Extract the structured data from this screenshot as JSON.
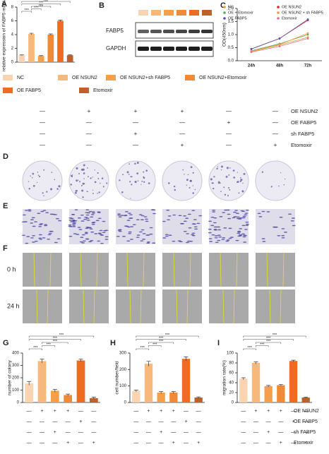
{
  "chart_data": [
    {
      "type": "bar",
      "panel": "A",
      "ylabel": "relative expression of FABP5 mRNA",
      "categories": [
        "NC",
        "OE NSUN2",
        "OE NSUN2+sh FABP5",
        "OE NSUN2+Etomoxir",
        "OE FABP5",
        "Etomoxir"
      ],
      "values": [
        1.0,
        4.1,
        0.9,
        4.0,
        6.0,
        1.0
      ],
      "errors": [
        0.05,
        0.1,
        0.05,
        0.1,
        0.1,
        0.05
      ],
      "colors": [
        "#f9d4b2",
        "#f7b87c",
        "#f4a04a",
        "#f08a36",
        "#ee6b22",
        "#bf5f2a"
      ],
      "ylim": [
        0,
        8
      ],
      "yticks": [
        0,
        2,
        4,
        6,
        8
      ],
      "annotations": [
        {
          "text": "***",
          "from": 0,
          "to": 1
        },
        {
          "text": "***",
          "from": 1,
          "to": 2
        },
        {
          "text": "ns",
          "from": 1,
          "to": 3
        },
        {
          "text": "***",
          "from": 0,
          "to": 4
        },
        {
          "text": "ns",
          "from": 0,
          "to": 5
        }
      ]
    },
    {
      "type": "line",
      "panel": "C",
      "ylabel": "OD(450nm)",
      "categories": [
        "24h",
        "48h",
        "72h"
      ],
      "ylim": [
        0,
        2
      ],
      "yticks": [
        {
          "value": 0,
          "label": "0.0"
        },
        {
          "value": 0.5,
          "label": "0.5"
        },
        {
          "value": 1,
          "label": "1.0"
        },
        {
          "value": 1.5,
          "label": "1.5"
        },
        {
          "value": 2,
          "label": "2.0"
        }
      ],
      "series": [
        {
          "name": "NC",
          "color": "#d9a62e",
          "values": [
            0.35,
            0.6,
            0.9
          ]
        },
        {
          "name": "OE NSUN2",
          "color": "#d62728",
          "values": [
            0.45,
            0.85,
            1.55
          ]
        },
        {
          "name": "OE + Etomoxir",
          "color": "#5aa55a",
          "values": [
            0.38,
            0.65,
            1.0
          ]
        },
        {
          "name": "OE NSUN2 + sh FABP5",
          "color": "#f39c3c",
          "values": [
            0.37,
            0.62,
            1.05
          ]
        },
        {
          "name": "OE FABP5",
          "color": "#5b4fb0",
          "values": [
            0.45,
            0.85,
            1.58
          ]
        },
        {
          "name": "Etomoxir",
          "color": "#e07090",
          "values": [
            0.33,
            0.55,
            0.85
          ]
        }
      ]
    },
    {
      "type": "bar",
      "panel": "G",
      "ylabel": "number of colony",
      "values": [
        155,
        335,
        95,
        60,
        340,
        35
      ],
      "errors": [
        15,
        15,
        10,
        8,
        10,
        8
      ],
      "colors": [
        "#f9d4b2",
        "#f7b87c",
        "#f4a04a",
        "#f08a36",
        "#ee6b22",
        "#bf5f2a"
      ],
      "ylim": [
        0,
        400
      ],
      "yticks": [
        0,
        100,
        200,
        300,
        400
      ],
      "annotations": [
        {
          "text": "***",
          "from": 0,
          "to": 1
        },
        {
          "text": "***",
          "from": 1,
          "to": 2
        },
        {
          "text": "***",
          "from": 1,
          "to": 3
        },
        {
          "text": "***",
          "from": 0,
          "to": 4
        },
        {
          "text": "***",
          "from": 0,
          "to": 5
        }
      ]
    },
    {
      "type": "bar",
      "panel": "H",
      "ylabel": "cell number/field",
      "values": [
        70,
        235,
        60,
        60,
        265,
        30
      ],
      "errors": [
        5,
        15,
        6,
        6,
        12,
        4
      ],
      "colors": [
        "#f9d4b2",
        "#f7b87c",
        "#f4a04a",
        "#f08a36",
        "#ee6b22",
        "#bf5f2a"
      ],
      "ylim": [
        0,
        300
      ],
      "yticks": [
        0,
        100,
        200,
        300
      ],
      "annotations": [
        {
          "text": "***",
          "from": 0,
          "to": 1
        },
        {
          "text": "***",
          "from": 1,
          "to": 2
        },
        {
          "text": "***",
          "from": 1,
          "to": 3
        },
        {
          "text": "***",
          "from": 0,
          "to": 4
        },
        {
          "text": "***",
          "from": 0,
          "to": 5
        }
      ]
    },
    {
      "type": "bar",
      "panel": "I",
      "ylabel": "migration rate(%)",
      "values": [
        48,
        80,
        33,
        35,
        84,
        10
      ],
      "errors": [
        2,
        2,
        1.5,
        1.5,
        1.5,
        1
      ],
      "colors": [
        "#f9d4b2",
        "#f7b87c",
        "#f4a04a",
        "#f08a36",
        "#ee6b22",
        "#bf5f2a"
      ],
      "ylim": [
        0,
        100
      ],
      "yticks": [
        0,
        20,
        40,
        60,
        80,
        100
      ],
      "annotations": [
        {
          "text": "***",
          "from": 0,
          "to": 1
        },
        {
          "text": "***",
          "from": 1,
          "to": 2
        },
        {
          "text": "***",
          "from": 1,
          "to": 3
        },
        {
          "text": "***",
          "from": 0,
          "to": 4
        },
        {
          "text": "***",
          "from": 0,
          "to": 5
        }
      ]
    }
  ],
  "blot": {
    "panel": "B",
    "labels": [
      "FABP5",
      "GAPDH"
    ]
  },
  "treatment_table": [
    {
      "label": "OE NSUN2",
      "signs": [
        "—",
        "+",
        "+",
        "+",
        "—",
        "—"
      ]
    },
    {
      "label": "OE FABP5",
      "signs": [
        "—",
        "—",
        "—",
        "—",
        "+",
        "—"
      ]
    },
    {
      "label": "sh FABP5",
      "signs": [
        "—",
        "—",
        "+",
        "—",
        "—",
        "—"
      ]
    },
    {
      "label": "Etomoxir",
      "signs": [
        "—",
        "—",
        "—",
        "+",
        "—",
        "+"
      ]
    }
  ],
  "image_panels": {
    "D": "D",
    "E": "E",
    "F": "F",
    "rows": [
      "0 h",
      "24 h"
    ]
  }
}
